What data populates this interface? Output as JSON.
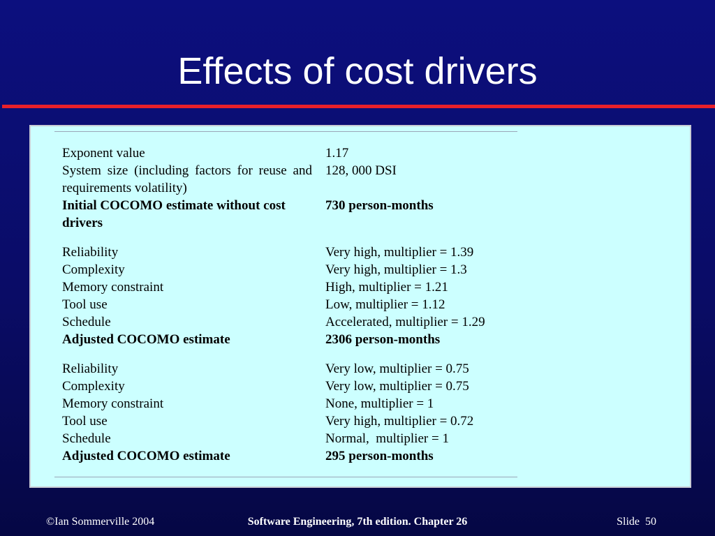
{
  "slide": {
    "title": "Effects of cost drivers"
  },
  "groups": [
    {
      "rows": [
        {
          "label": "Exponent value",
          "value": "1.17",
          "bold": false
        },
        {
          "label": "System size (including factors for reuse and requirements volatility)",
          "value": "128, 000 DSI",
          "bold": false
        },
        {
          "label": "Initial COCOMO estimate without cost drivers",
          "value": "730 person-months",
          "bold": true
        }
      ]
    },
    {
      "rows": [
        {
          "label": "Reliability",
          "value": "Very high, multiplier = 1.39",
          "bold": false
        },
        {
          "label": "Complexity",
          "value": "Very high, multiplier = 1.3",
          "bold": false
        },
        {
          "label": "Memory constraint",
          "value": "High, multiplier = 1.21",
          "bold": false
        },
        {
          "label": "Tool use",
          "value": "Low, multiplier = 1.12",
          "bold": false
        },
        {
          "label": "Schedule",
          "value": "Accelerated, multiplier = 1.29",
          "bold": false
        },
        {
          "label": "Adjusted COCOMO estimate",
          "value": "2306 person-months",
          "bold": true
        }
      ]
    },
    {
      "rows": [
        {
          "label": "Reliability",
          "value": "Very low, multiplier = 0.75",
          "bold": false
        },
        {
          "label": "Complexity",
          "value": "Very low, multiplier = 0.75",
          "bold": false
        },
        {
          "label": "Memory constraint",
          "value": "None, multiplier = 1",
          "bold": false
        },
        {
          "label": "Tool use",
          "value": "Very high, multiplier = 0.72",
          "bold": false
        },
        {
          "label": "Schedule",
          "value": "Normal,  multiplier = 1",
          "bold": false
        },
        {
          "label": "Adjusted COCOMO estimate",
          "value": "295 person-months",
          "bold": true
        }
      ]
    }
  ],
  "footer": {
    "copyright": "©Ian Sommerville 2004",
    "book": "Software Engineering, 7th edition. Chapter 26",
    "slide_label": "Slide  50"
  },
  "colors": {
    "background": "#0c0f7e",
    "rule": "#e8202a",
    "panel": "#ccffff"
  }
}
